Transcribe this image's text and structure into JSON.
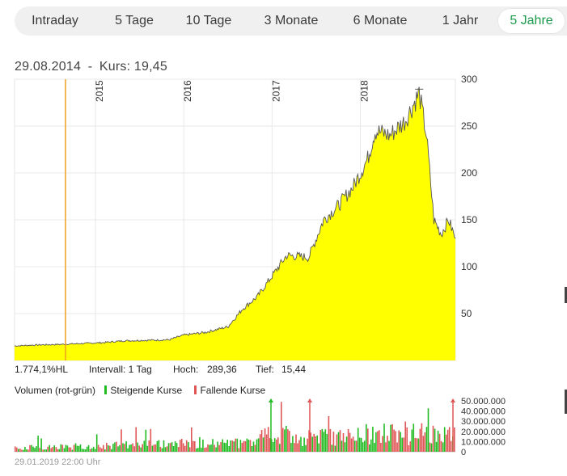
{
  "tabs": [
    {
      "label": "Intraday",
      "active": false
    },
    {
      "label": "5 Tage",
      "active": false
    },
    {
      "label": "10 Tage",
      "active": false
    },
    {
      "label": "3 Monate",
      "active": false
    },
    {
      "label": "6 Monate",
      "active": false
    },
    {
      "label": "1 Jahr",
      "active": false
    },
    {
      "label": "5 Jahre",
      "active": true
    }
  ],
  "cursor_info": {
    "date": "29.08.2014",
    "sep": "-",
    "price_label": "Kurs: 19,45"
  },
  "stats": {
    "change": "1.774,1%HL",
    "interval": "Intervall: 1 Tag",
    "high_label": "Hoch:",
    "high": "289,36",
    "low_label": "Tief:",
    "low": "15,44"
  },
  "volume_legend": {
    "title": "Volumen (rot-grün)",
    "rising": "Steigende Kurse",
    "falling": "Fallende Kurse"
  },
  "footer": "29.01.2019 22:00 Uhr",
  "colors": {
    "area_fill": "#ffff00",
    "line": "#555555",
    "rising": "#22bb22",
    "falling": "#e05555",
    "cursor": "#f0a020",
    "active_tab": "#1a9a4a"
  },
  "chart_data": [
    {
      "type": "area",
      "x_range": [
        "2014-02",
        "2019-01"
      ],
      "year_labels": [
        "2015",
        "2016",
        "2017",
        "2018"
      ],
      "y_ticks": [
        50,
        100,
        150,
        200,
        250,
        300
      ],
      "ylim": [
        0,
        300
      ],
      "grid": true,
      "cursor_x": "2014-08-29",
      "points": [
        [
          "2014-02",
          15.5
        ],
        [
          "2014-05",
          16.5
        ],
        [
          "2014-08",
          17
        ],
        [
          "2014-11",
          18
        ],
        [
          "2015-02",
          19
        ],
        [
          "2015-05",
          21
        ],
        [
          "2015-08",
          21.5
        ],
        [
          "2015-11",
          22
        ],
        [
          "2016-01",
          27
        ],
        [
          "2016-04",
          30
        ],
        [
          "2016-07",
          36
        ],
        [
          "2016-09",
          55
        ],
        [
          "2016-11",
          68
        ],
        [
          "2017-01",
          90
        ],
        [
          "2017-03",
          112
        ],
        [
          "2017-06",
          110
        ],
        [
          "2017-08",
          150
        ],
        [
          "2017-10",
          165
        ],
        [
          "2017-12",
          185
        ],
        [
          "2018-02",
          215
        ],
        [
          "2018-03",
          245
        ],
        [
          "2018-05",
          240
        ],
        [
          "2018-07",
          255
        ],
        [
          "2018-08",
          270
        ],
        [
          "2018-09",
          285
        ],
        [
          "2018-10",
          240
        ],
        [
          "2018-11",
          150
        ],
        [
          "2018-12",
          135
        ],
        [
          "2019-01",
          150
        ],
        [
          "2019-01-29",
          130
        ]
      ]
    },
    {
      "type": "bar",
      "title": "Volumen (rot-grün)",
      "y_ticks": [
        "0",
        "10.000.000",
        "20.000.000",
        "30.000.000",
        "40.000.000",
        "50.000.000"
      ],
      "ylim": [
        0,
        50000000
      ],
      "series": [
        {
          "name": "Steigende Kurse"
        },
        {
          "name": "Fallende Kurse"
        }
      ]
    }
  ]
}
